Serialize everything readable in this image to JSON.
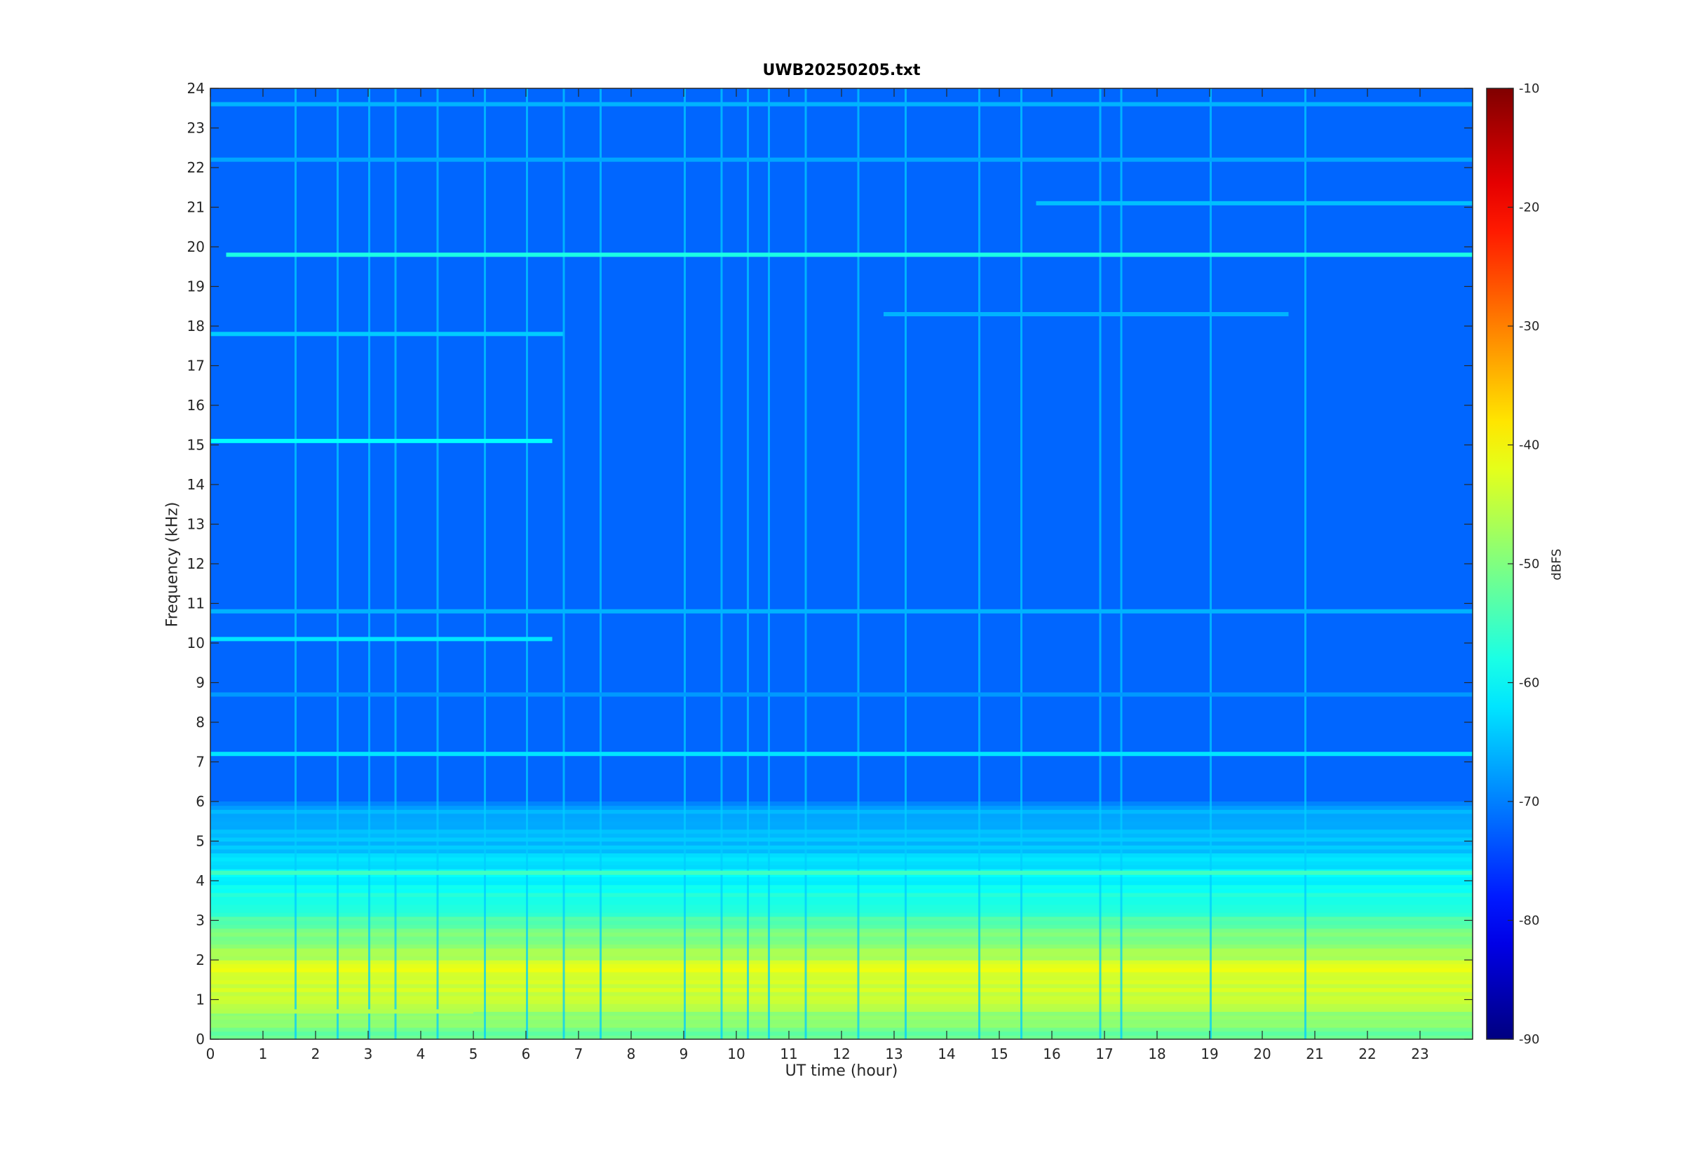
{
  "figure": {
    "title": "UWB20250205.txt",
    "xlabel": "UT time (hour)",
    "ylabel": "Frequency (kHz)",
    "colorbar_label": "dBFS"
  },
  "chart_data": {
    "type": "heatmap",
    "title": "UWB20250205.txt",
    "xlabel": "UT time (hour)",
    "ylabel": "Frequency (kHz)",
    "xlim": [
      0,
      24
    ],
    "ylim": [
      0,
      24
    ],
    "x_ticks": [
      0,
      1,
      2,
      3,
      4,
      5,
      6,
      7,
      8,
      9,
      10,
      11,
      12,
      13,
      14,
      15,
      16,
      17,
      18,
      19,
      20,
      21,
      22,
      23
    ],
    "y_ticks": [
      0,
      1,
      2,
      3,
      4,
      5,
      6,
      7,
      8,
      9,
      10,
      11,
      12,
      13,
      14,
      15,
      16,
      17,
      18,
      19,
      20,
      21,
      22,
      23,
      24
    ],
    "colormap": "jet",
    "colorbar": {
      "label": "dBFS",
      "clim": [
        -90,
        -10
      ],
      "ticks": [
        -90,
        -80,
        -70,
        -60,
        -50,
        -40,
        -30,
        -20,
        -10
      ]
    },
    "grid": false,
    "background_level_dbfs": -72,
    "low_frequency_band": {
      "description_level": [
        {
          "freq_khz": 0.2,
          "dbfs": -52
        },
        {
          "freq_khz": 1.0,
          "dbfs": -45
        },
        {
          "freq_khz": 1.7,
          "dbfs": -42
        },
        {
          "freq_khz": 2.5,
          "dbfs": -50
        },
        {
          "freq_khz": 3.5,
          "dbfs": -58
        },
        {
          "freq_khz": 4.5,
          "dbfs": -63
        },
        {
          "freq_khz": 6.0,
          "dbfs": -68
        }
      ]
    },
    "persistent_lines": [
      {
        "freq_khz": 19.8,
        "t_start": 0.3,
        "t_end": 24,
        "dbfs": -58
      },
      {
        "freq_khz": 18.3,
        "t_start": 12.8,
        "t_end": 20.5,
        "dbfs": -66
      },
      {
        "freq_khz": 17.8,
        "t_start": 0.0,
        "t_end": 6.7,
        "dbfs": -64
      },
      {
        "freq_khz": 21.1,
        "t_start": 15.7,
        "t_end": 24,
        "dbfs": -65
      },
      {
        "freq_khz": 22.2,
        "t_start": 0.0,
        "t_end": 24,
        "dbfs": -67
      },
      {
        "freq_khz": 23.6,
        "t_start": 0.0,
        "t_end": 24,
        "dbfs": -66
      },
      {
        "freq_khz": 15.1,
        "t_start": 0.0,
        "t_end": 6.5,
        "dbfs": -60
      },
      {
        "freq_khz": 10.1,
        "t_start": 0.0,
        "t_end": 6.5,
        "dbfs": -62
      },
      {
        "freq_khz": 10.8,
        "t_start": 0.0,
        "t_end": 24,
        "dbfs": -66
      },
      {
        "freq_khz": 8.7,
        "t_start": 0.0,
        "t_end": 24,
        "dbfs": -68
      },
      {
        "freq_khz": 7.2,
        "t_start": 0.0,
        "t_end": 24,
        "dbfs": -62
      },
      {
        "freq_khz": 4.2,
        "t_start": 0.0,
        "t_end": 24,
        "dbfs": -55
      },
      {
        "freq_khz": 0.7,
        "t_start": 0.0,
        "t_end": 5.0,
        "dbfs": -46
      }
    ],
    "broadband_events_hours": [
      1.6,
      2.4,
      3.0,
      3.5,
      4.3,
      5.2,
      6.0,
      6.7,
      7.4,
      9.0,
      9.7,
      10.2,
      10.6,
      11.3,
      12.3,
      13.2,
      14.6,
      15.4,
      16.9,
      17.3,
      19.0,
      20.8
    ]
  }
}
